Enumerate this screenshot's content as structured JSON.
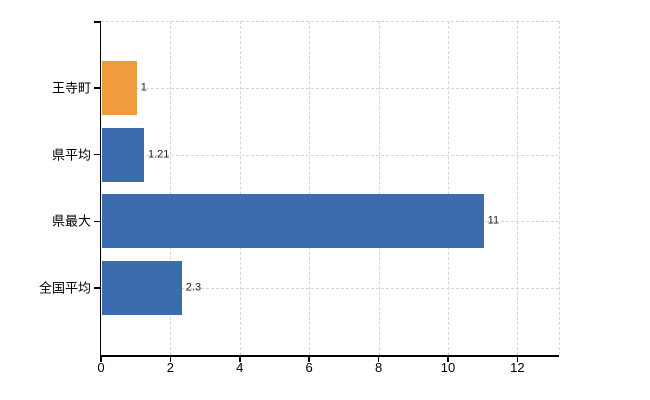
{
  "chart_data": {
    "type": "bar",
    "orientation": "horizontal",
    "title": "",
    "xlabel": "",
    "ylabel": "",
    "categories": [
      "王寺町",
      "県平均",
      "県最大",
      "全国平均"
    ],
    "values": [
      1,
      1.21,
      11,
      2.3
    ],
    "value_labels": [
      "1",
      "1.21",
      "11",
      "2.3"
    ],
    "bar_colors": [
      "#EF9B3F",
      "#3B6DAE",
      "#3B6DAE",
      "#3B6DAE"
    ],
    "xlim": [
      0,
      13.2
    ],
    "x_ticks": [
      0,
      2,
      4,
      6,
      8,
      10,
      12
    ],
    "x_tick_labels": [
      "0",
      "2",
      "4",
      "6",
      "8",
      "10",
      "12"
    ],
    "grid": true,
    "grid_style": "dashed",
    "grid_color": "#d3d6d3",
    "axis_color": "#000000",
    "category_label_color": "#000000",
    "value_label_color": "#222222",
    "background_color": "#ffffff",
    "legend": false
  }
}
